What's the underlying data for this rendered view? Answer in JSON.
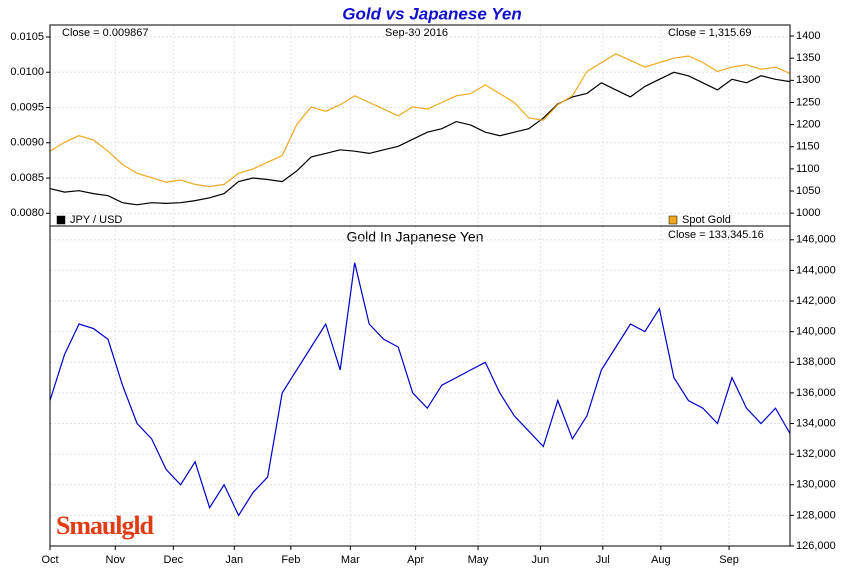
{
  "chart_data": [
    {
      "type": "line",
      "title": "Gold vs Japanese Yen",
      "annotations": [
        "Close = 0.009867",
        "Sep-30  2016",
        "Close = 1,315.69"
      ],
      "xlim": [
        0,
        51
      ],
      "ylim": [
        0.00782,
        0.01067
      ],
      "yticks": [
        {
          "value": 0.008,
          "label": "0.0080"
        },
        {
          "value": 0.0085,
          "label": "0.0085"
        },
        {
          "value": 0.009,
          "label": "0.0090"
        },
        {
          "value": 0.0095,
          "label": "0.0095"
        },
        {
          "value": 0.01,
          "label": "0.0100"
        },
        {
          "value": 0.0105,
          "label": "0.0105"
        }
      ],
      "y2lim": [
        971,
        1425
      ],
      "y2ticks": [
        1000,
        1050,
        1100,
        1150,
        1200,
        1250,
        1300,
        1350,
        1400
      ],
      "grid": true,
      "series": [
        {
          "name": "JPY / USD",
          "color": "#000000",
          "axis": "y",
          "values": [
            0.00835,
            0.0083,
            0.00832,
            0.00828,
            0.00825,
            0.00815,
            0.00812,
            0.00815,
            0.00814,
            0.00815,
            0.00818,
            0.00822,
            0.00828,
            0.00845,
            0.0085,
            0.00848,
            0.00845,
            0.0086,
            0.0088,
            0.00885,
            0.0089,
            0.00888,
            0.00885,
            0.0089,
            0.00895,
            0.00905,
            0.00915,
            0.0092,
            0.0093,
            0.00925,
            0.00915,
            0.0091,
            0.00915,
            0.0092,
            0.00935,
            0.00955,
            0.00965,
            0.0097,
            0.00985,
            0.00975,
            0.00965,
            0.0098,
            0.0099,
            0.01,
            0.00995,
            0.00985,
            0.00975,
            0.0099,
            0.00985,
            0.00995,
            0.0099,
            0.009867
          ]
        },
        {
          "name": "Spot Gold",
          "color": "#f0a820",
          "axis": "y2",
          "values": [
            1140,
            1160,
            1175,
            1165,
            1140,
            1110,
            1090,
            1080,
            1070,
            1075,
            1065,
            1060,
            1065,
            1090,
            1100,
            1115,
            1130,
            1200,
            1240,
            1230,
            1245,
            1265,
            1250,
            1235,
            1220,
            1240,
            1235,
            1250,
            1265,
            1270,
            1290,
            1270,
            1250,
            1215,
            1210,
            1245,
            1265,
            1320,
            1340,
            1360,
            1345,
            1330,
            1340,
            1350,
            1355,
            1340,
            1320,
            1330,
            1335,
            1325,
            1330,
            1315.69
          ]
        }
      ]
    },
    {
      "type": "line",
      "title": "Gold In Japanese Yen",
      "annotations": [
        "Close = 133,345.16"
      ],
      "brand": "Smaulgld",
      "xlim": [
        0,
        51
      ],
      "xticks": [
        {
          "value": 0,
          "label": "Oct"
        },
        {
          "value": 4.5,
          "label": "Nov"
        },
        {
          "value": 8.5,
          "label": "Dec"
        },
        {
          "value": 12.7,
          "label": "Jan"
        },
        {
          "value": 16.6,
          "label": "Feb"
        },
        {
          "value": 20.7,
          "label": "Mar"
        },
        {
          "value": 25.2,
          "label": "Apr"
        },
        {
          "value": 29.5,
          "label": "May"
        },
        {
          "value": 33.8,
          "label": "Jun"
        },
        {
          "value": 38.1,
          "label": "Jul"
        },
        {
          "value": 42.1,
          "label": "Aug"
        },
        {
          "value": 46.8,
          "label": "Sep"
        }
      ],
      "ylim": [
        126000,
        146900
      ],
      "yticks": [
        {
          "value": 126000,
          "label": "126,000"
        },
        {
          "value": 128000,
          "label": "128,000"
        },
        {
          "value": 130000,
          "label": "130,000"
        },
        {
          "value": 132000,
          "label": "132,000"
        },
        {
          "value": 134000,
          "label": "134,000"
        },
        {
          "value": 136000,
          "label": "136,000"
        },
        {
          "value": 138000,
          "label": "138,000"
        },
        {
          "value": 140000,
          "label": "140,000"
        },
        {
          "value": 142000,
          "label": "142,000"
        },
        {
          "value": 144000,
          "label": "144,000"
        },
        {
          "value": 146000,
          "label": "146,000"
        }
      ],
      "grid": true,
      "series": [
        {
          "name": "Gold In Japanese Yen",
          "color": "#0000cc",
          "values": [
            135500,
            138500,
            140500,
            140200,
            139500,
            136500,
            134000,
            133000,
            131000,
            130000,
            131500,
            128500,
            130000,
            128000,
            129500,
            130500,
            136000,
            137500,
            139000,
            140500,
            137500,
            144500,
            140500,
            139500,
            139000,
            136000,
            135000,
            136500,
            137000,
            137500,
            138000,
            136000,
            134500,
            133500,
            132500,
            135500,
            133000,
            134500,
            137500,
            139000,
            140500,
            140000,
            141500,
            137000,
            135500,
            135000,
            134000,
            137000,
            135000,
            134000,
            135000,
            133345.16
          ]
        }
      ]
    }
  ]
}
